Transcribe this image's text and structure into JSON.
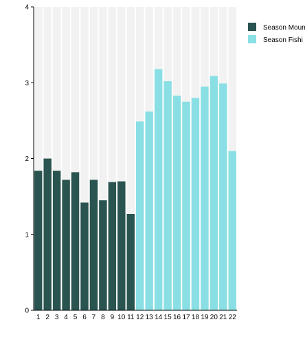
{
  "chart_data": {
    "type": "bar",
    "categories": [
      "1",
      "2",
      "3",
      "4",
      "5",
      "6",
      "7",
      "8",
      "9",
      "10",
      "11",
      "12",
      "13",
      "14",
      "15",
      "16",
      "17",
      "18",
      "19",
      "20",
      "21",
      "22"
    ],
    "series": [
      {
        "name": "Season Mount",
        "color": "#2a5450",
        "values": [
          1.84,
          2.0,
          1.84,
          1.72,
          1.82,
          1.42,
          1.72,
          1.45,
          1.69,
          1.7,
          1.27,
          null,
          null,
          null,
          null,
          null,
          null,
          null,
          null,
          null,
          null,
          null
        ]
      },
      {
        "name": "Season Fishi",
        "color": "#8adfe4",
        "values": [
          null,
          null,
          null,
          null,
          null,
          null,
          null,
          null,
          null,
          null,
          null,
          2.49,
          2.62,
          3.18,
          3.02,
          2.83,
          2.75,
          2.8,
          2.95,
          3.09,
          2.99,
          2.1
        ]
      }
    ],
    "yticks": [
      "0",
      "1",
      "2",
      "3",
      "4"
    ],
    "ylim": [
      0,
      4
    ],
    "xlabel": "",
    "ylabel": "",
    "title": "",
    "grid": false,
    "background_bars": true,
    "legend_position": "top-right"
  }
}
